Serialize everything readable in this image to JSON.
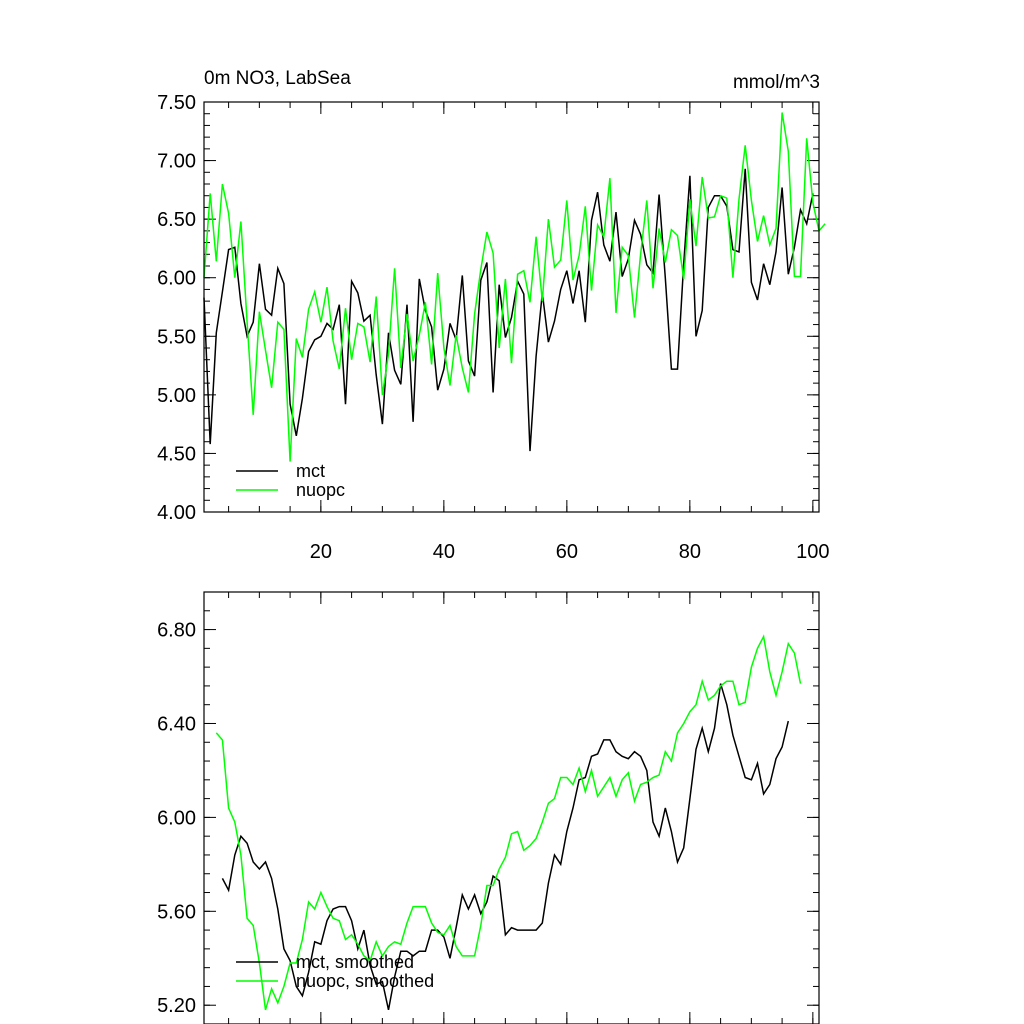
{
  "chart_data": [
    {
      "type": "line",
      "title_left": "0m NO3, LabSea",
      "title_right": "mmol/m^3",
      "xlim": [
        1,
        101
      ],
      "ylim": [
        4.0,
        7.5
      ],
      "x_ticks": [
        20,
        40,
        60,
        80,
        100
      ],
      "x_tick_labels": [
        "20",
        "40",
        "60",
        "80",
        "100"
      ],
      "y_ticks": [
        4.0,
        4.5,
        5.0,
        5.5,
        6.0,
        6.5,
        7.0,
        7.5
      ],
      "y_tick_labels": [
        "4.00",
        "4.50",
        "5.00",
        "5.50",
        "6.00",
        "6.50",
        "7.00",
        "7.50"
      ],
      "legend": [
        "mct",
        "nuopc"
      ],
      "series": [
        {
          "name": "mct",
          "color": "#000000",
          "x_start": 1,
          "values": [
            5.83,
            4.58,
            5.53,
            5.88,
            6.24,
            6.26,
            5.78,
            5.5,
            5.62,
            6.12,
            5.73,
            5.68,
            6.08,
            5.95,
            4.92,
            4.65,
            4.97,
            5.37,
            5.47,
            5.5,
            5.61,
            5.56,
            5.77,
            4.92,
            5.97,
            5.87,
            5.63,
            5.68,
            5.17,
            4.75,
            5.53,
            5.21,
            5.09,
            5.77,
            4.77,
            5.99,
            5.72,
            5.58,
            5.04,
            5.22,
            5.61,
            5.47,
            6.02,
            5.29,
            5.16,
            5.98,
            6.13,
            5.02,
            5.94,
            5.49,
            5.66,
            5.97,
            5.86,
            4.52,
            5.33,
            5.87,
            5.45,
            5.63,
            5.9,
            6.06,
            5.78,
            6.06,
            5.62,
            6.49,
            6.73,
            6.28,
            6.14,
            6.56,
            6.01,
            6.16,
            6.49,
            6.37,
            6.11,
            6.04,
            6.71,
            6.0,
            5.22,
            5.22,
            6.12,
            6.87,
            5.5,
            5.72,
            6.6,
            6.7,
            6.7,
            6.61,
            6.24,
            6.22,
            6.93,
            5.96,
            5.81,
            6.12,
            5.94,
            6.22,
            6.77,
            6.03,
            6.26,
            6.58,
            6.46,
            6.72
          ]
        },
        {
          "name": "nuopc",
          "color": "#00ff00",
          "x_start": 1,
          "values": [
            6.0,
            6.72,
            6.14,
            6.8,
            6.55,
            6.0,
            6.48,
            5.62,
            4.83,
            5.71,
            5.38,
            5.06,
            5.62,
            5.56,
            4.43,
            5.48,
            5.32,
            5.73,
            5.88,
            5.62,
            5.92,
            5.46,
            5.22,
            5.74,
            5.3,
            5.61,
            5.58,
            5.28,
            5.84,
            5.0,
            5.35,
            6.08,
            5.23,
            5.69,
            5.29,
            5.51,
            5.79,
            5.26,
            6.04,
            5.4,
            5.08,
            5.51,
            5.23,
            5.02,
            5.69,
            6.07,
            6.39,
            6.21,
            5.4,
            5.99,
            5.27,
            6.03,
            6.06,
            5.79,
            6.35,
            5.8,
            6.5,
            6.09,
            6.15,
            6.66,
            5.98,
            6.19,
            6.61,
            5.89,
            6.45,
            6.35,
            6.85,
            5.7,
            6.26,
            6.19,
            5.66,
            6.2,
            6.66,
            5.91,
            6.42,
            6.13,
            6.41,
            6.36,
            5.99,
            6.67,
            6.27,
            6.86,
            6.51,
            6.52,
            6.7,
            6.68,
            6.0,
            6.67,
            7.13,
            6.66,
            6.31,
            6.53,
            6.28,
            6.42,
            7.41,
            7.08,
            6.01,
            6.01,
            7.19,
            6.64,
            6.4,
            6.46
          ]
        }
      ]
    },
    {
      "type": "line",
      "xlim": [
        1,
        101
      ],
      "ylim": [
        5.12,
        6.96
      ],
      "x_ticks": [
        20,
        40,
        60,
        80,
        100
      ],
      "y_ticks": [
        5.2,
        5.6,
        6.0,
        6.4,
        6.8
      ],
      "y_tick_labels": [
        "5.20",
        "5.60",
        "6.00",
        "6.40",
        "6.80"
      ],
      "legend": [
        "mct, smoothed",
        "nuopc, smoothed"
      ],
      "series": [
        {
          "name": "mct, smoothed",
          "color": "#000000",
          "x_start": 4,
          "values": [
            5.74,
            5.69,
            5.84,
            5.92,
            5.89,
            5.81,
            5.78,
            5.81,
            5.74,
            5.61,
            5.44,
            5.39,
            5.28,
            5.24,
            5.34,
            5.47,
            5.46,
            5.56,
            5.61,
            5.62,
            5.62,
            5.56,
            5.44,
            5.52,
            5.37,
            5.29,
            5.3,
            5.18,
            5.32,
            5.43,
            5.43,
            5.41,
            5.43,
            5.43,
            5.52,
            5.52,
            5.49,
            5.4,
            5.53,
            5.67,
            5.61,
            5.67,
            5.59,
            5.64,
            5.75,
            5.73,
            5.5,
            5.53,
            5.52,
            5.52,
            5.52,
            5.52,
            5.55,
            5.72,
            5.84,
            5.8,
            5.94,
            6.04,
            6.16,
            6.17,
            6.26,
            6.27,
            6.33,
            6.33,
            6.28,
            6.26,
            6.25,
            6.28,
            6.26,
            6.2,
            5.98,
            5.92,
            6.04,
            5.94,
            5.81,
            5.87,
            6.08,
            6.29,
            6.38,
            6.28,
            6.38,
            6.57,
            6.48,
            6.35,
            6.26,
            6.17,
            6.16,
            6.23,
            6.1,
            6.14,
            6.25,
            6.3,
            6.41
          ]
        },
        {
          "name": "nuopc, smoothed",
          "color": "#00ff00",
          "x_start": 3,
          "values": [
            6.36,
            6.33,
            6.04,
            5.98,
            5.84,
            5.57,
            5.54,
            5.38,
            5.18,
            5.27,
            5.21,
            5.28,
            5.38,
            5.38,
            5.48,
            5.64,
            5.61,
            5.68,
            5.62,
            5.57,
            5.56,
            5.48,
            5.5,
            5.46,
            5.41,
            5.39,
            5.47,
            5.41,
            5.45,
            5.47,
            5.46,
            5.55,
            5.62,
            5.62,
            5.62,
            5.55,
            5.51,
            5.5,
            5.54,
            5.45,
            5.41,
            5.41,
            5.41,
            5.54,
            5.71,
            5.71,
            5.78,
            5.83,
            5.93,
            5.94,
            5.86,
            5.88,
            5.91,
            5.98,
            6.06,
            6.08,
            6.17,
            6.17,
            6.14,
            6.21,
            6.11,
            6.2,
            6.09,
            6.13,
            6.17,
            6.09,
            6.16,
            6.19,
            6.07,
            6.14,
            6.15,
            6.17,
            6.18,
            6.28,
            6.24,
            6.36,
            6.4,
            6.45,
            6.48,
            6.58,
            6.5,
            6.52,
            6.56,
            6.58,
            6.58,
            6.48,
            6.49,
            6.64,
            6.72,
            6.77,
            6.62,
            6.52,
            6.62,
            6.74,
            6.7,
            6.57
          ]
        }
      ]
    }
  ]
}
